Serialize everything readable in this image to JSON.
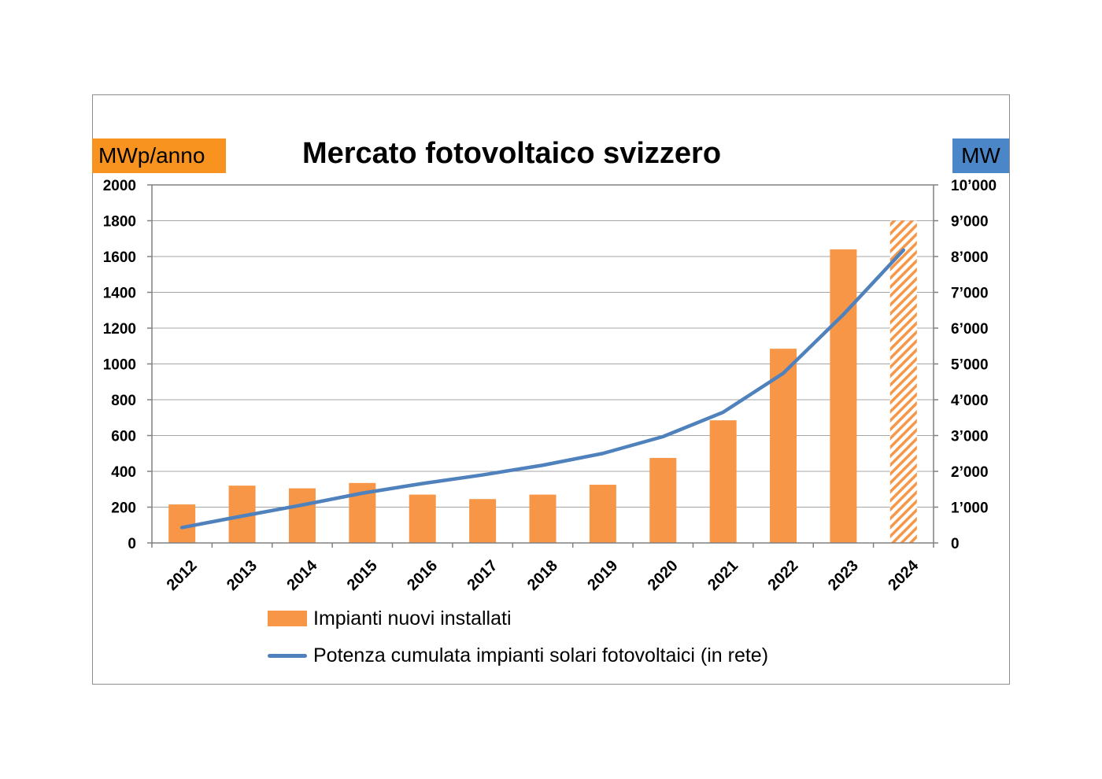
{
  "chart_data": {
    "type": "bar",
    "title": "Mercato fotovoltaico svizzero",
    "left_axis_unit": "MWp/anno",
    "right_axis_unit": "MW",
    "categories": [
      "2012",
      "2013",
      "2014",
      "2015",
      "2016",
      "2017",
      "2018",
      "2019",
      "2020",
      "2021",
      "2022",
      "2023",
      "2024"
    ],
    "series": [
      {
        "name": "Impianti nuovi installati",
        "type": "bar",
        "axis": "left",
        "color": "#f79646",
        "values": [
          215,
          320,
          305,
          335,
          270,
          245,
          270,
          325,
          475,
          685,
          1085,
          1640,
          1800
        ],
        "hatched_categories": [
          "2024"
        ]
      },
      {
        "name": "Potenza cumulata impianti solari fotovoltaici (in rete)",
        "type": "line",
        "axis": "right",
        "color": "#4f81bd",
        "values": [
          430,
          750,
          1060,
          1390,
          1660,
          1900,
          2170,
          2500,
          2970,
          3650,
          4740,
          6380,
          8180
        ]
      }
    ],
    "ylim_left": [
      0,
      2000
    ],
    "yticks_left": [
      "0",
      "200",
      "400",
      "600",
      "800",
      "1000",
      "1200",
      "1400",
      "1600",
      "1800",
      "2000"
    ],
    "ylim_right": [
      0,
      10000
    ],
    "yticks_right": [
      "0",
      "1’000",
      "2’000",
      "3’000",
      "4’000",
      "5’000",
      "6’000",
      "7’000",
      "8’000",
      "9’000",
      "10’000"
    ],
    "grid": true,
    "legend_position": "bottom"
  },
  "colors": {
    "bar": "#f79646",
    "line": "#4f81bd",
    "left_unit_bg": "#f7931e",
    "right_unit_bg": "#4a86c8",
    "grid": "#a6a6a6"
  }
}
